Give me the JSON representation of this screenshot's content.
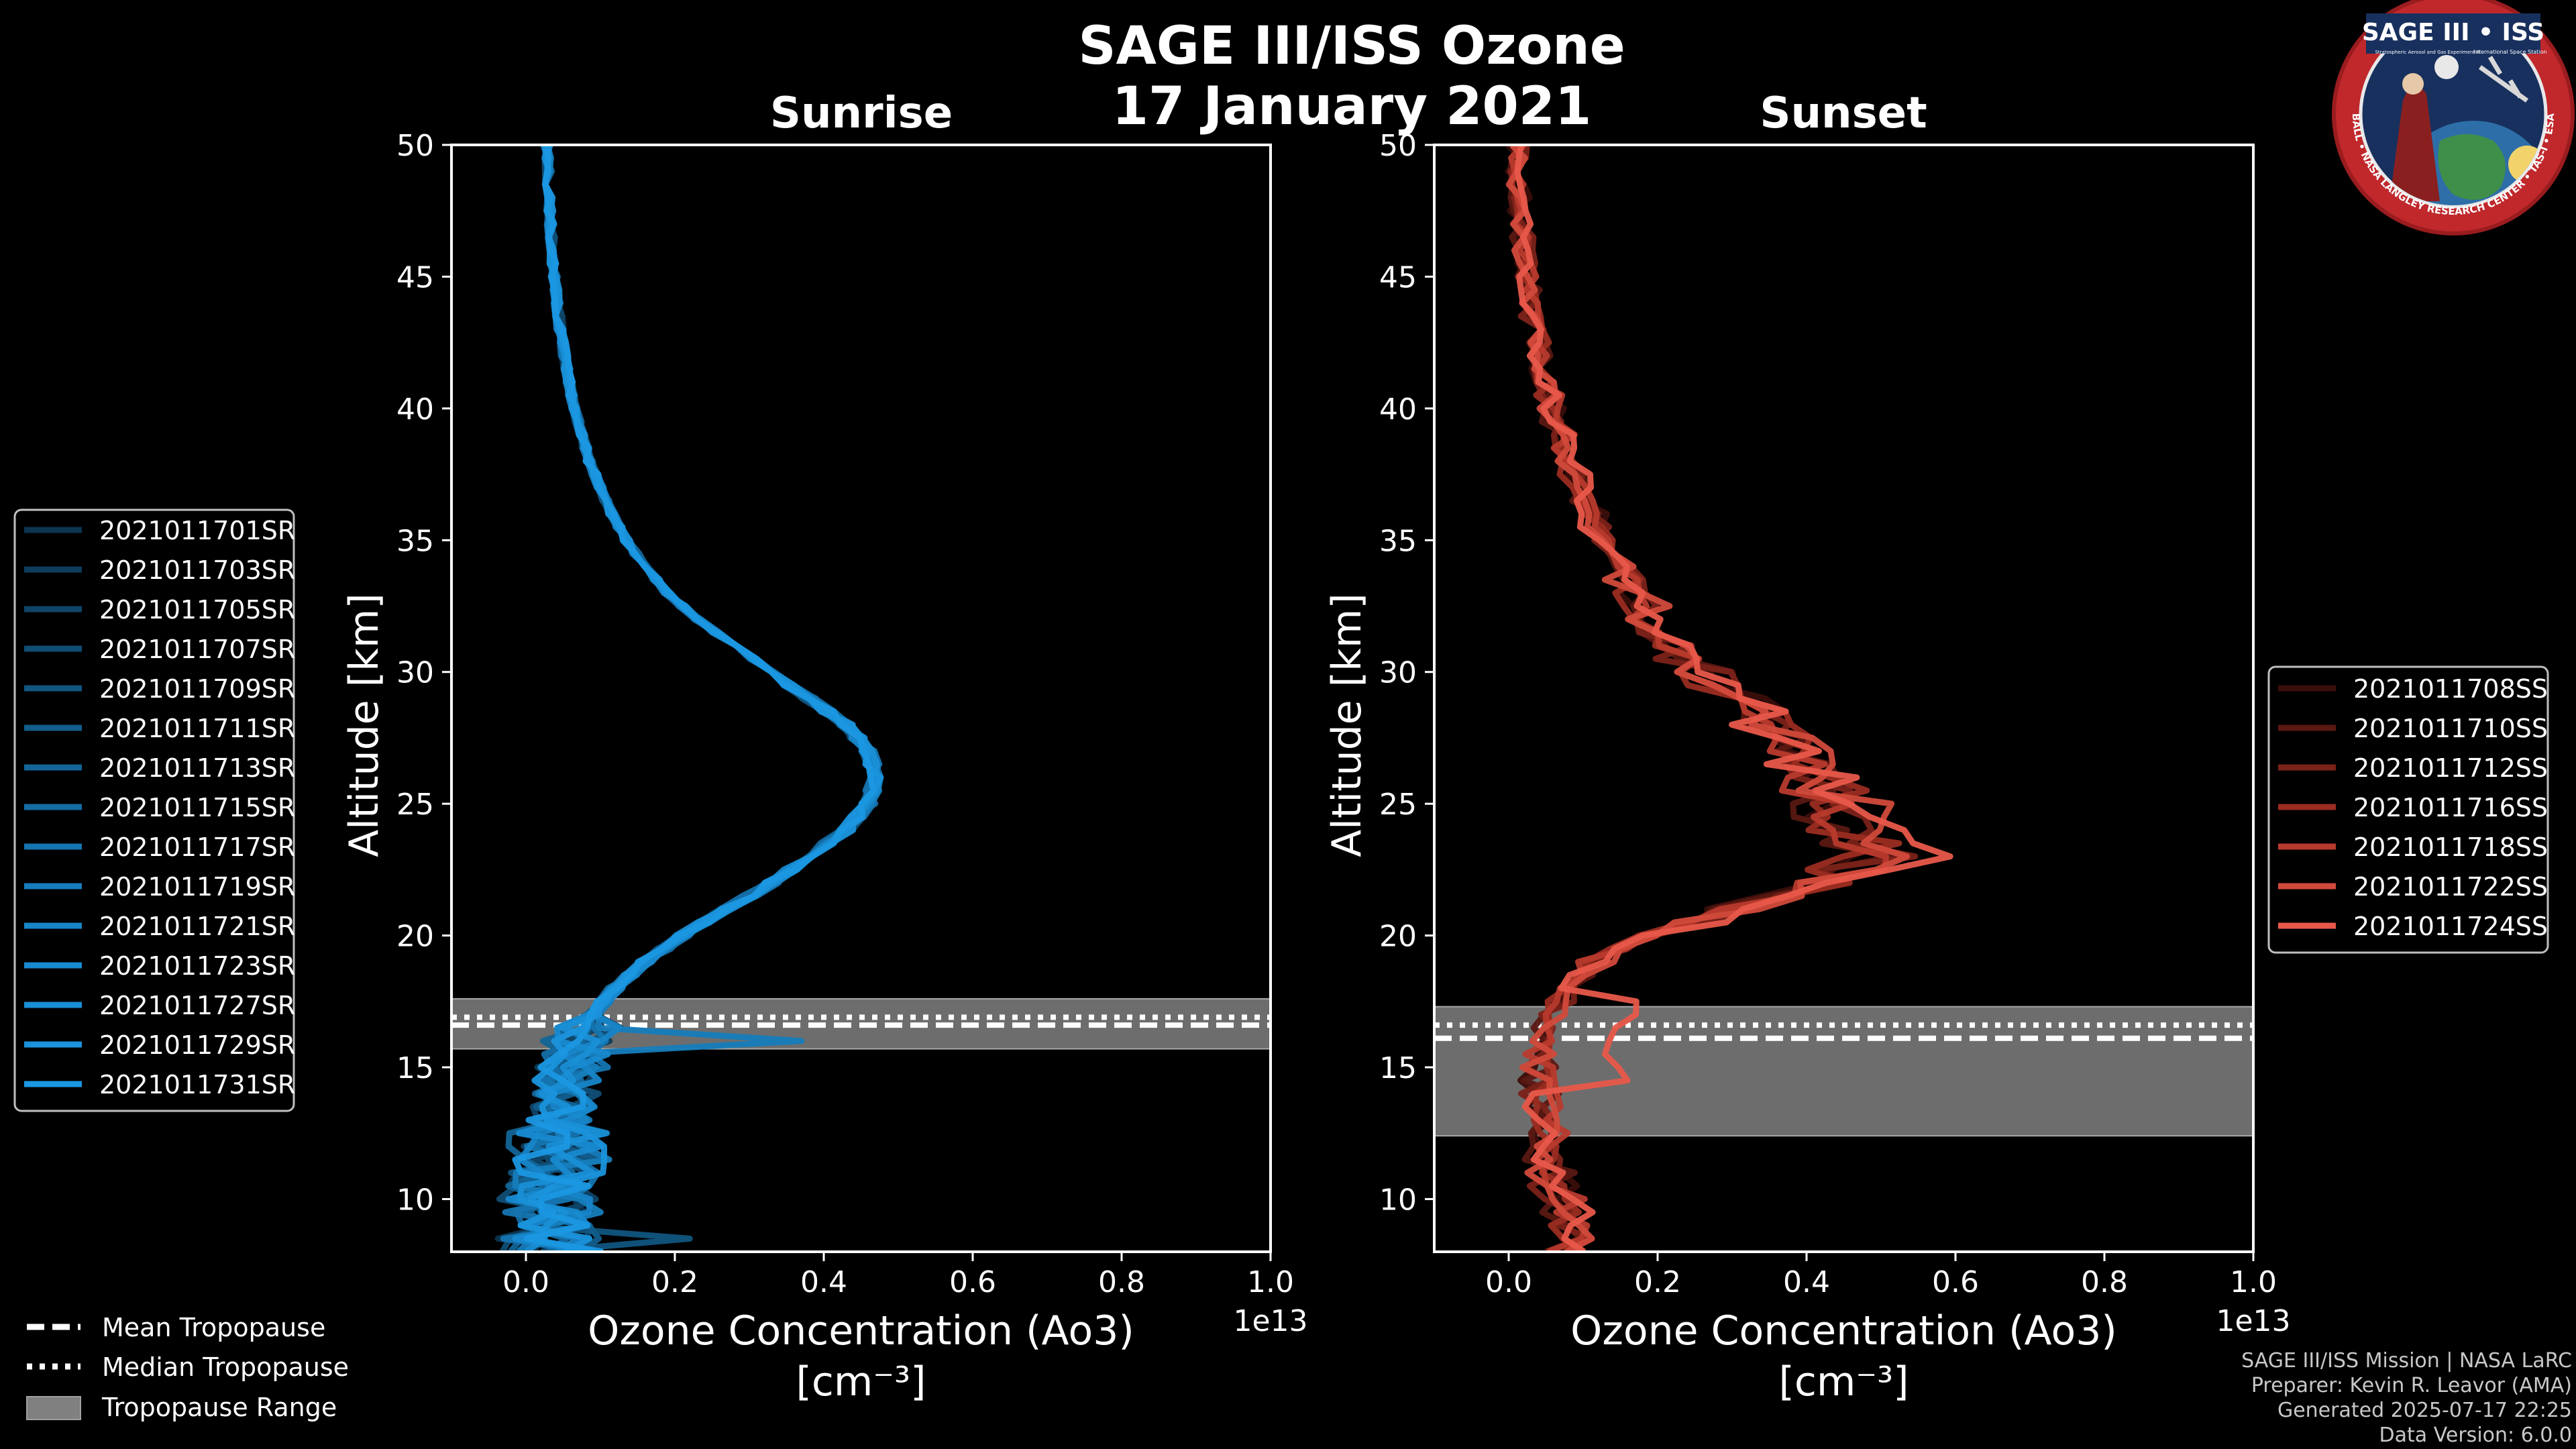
{
  "header": {
    "title_line1": "SAGE III/ISS Ozone",
    "title_line2": "17 January 2021"
  },
  "logo": {
    "title": "SAGE III • ISS",
    "subtitle_left": "Stratospheric Aerosol and Gas Experiment III",
    "subtitle_right": "International Space Station",
    "ring_text": "BALL • NASA LANGLEY RESEARCH CENTER • TAS-I • ESA"
  },
  "credits": {
    "line1": "SAGE III/ISS Mission | NASA LaRC",
    "line2": "Preparer: Kevin R. Leavor (AMA)",
    "line3": "Generated 2025-07-17 22:25",
    "line4": "Data Version: 6.0.0"
  },
  "tropopause_legend": {
    "mean": "Mean Tropopause",
    "median": "Median Tropopause",
    "range": "Tropopause Range"
  },
  "colors": {
    "sunrise": "#1a8fd4",
    "sunset": "#e8584a",
    "trop_fill": "#808080"
  },
  "chart_data": [
    {
      "type": "line",
      "title": "Sunrise",
      "xlabel": "Ozone Concentration (Ao3)",
      "xlabel_units": "[cm⁻³]",
      "ylabel": "Altitude [km]",
      "x_offset_label": "1e13",
      "xlim": [
        -0.1,
        1.0
      ],
      "ylim": [
        8,
        50
      ],
      "xticks": [
        "0.0",
        "0.2",
        "0.4",
        "0.6",
        "0.8",
        "1.0"
      ],
      "xtick_values": [
        0.0,
        0.2,
        0.4,
        0.6,
        0.8,
        1.0
      ],
      "yticks": [
        "10",
        "15",
        "20",
        "25",
        "30",
        "35",
        "40",
        "45",
        "50"
      ],
      "ytick_values": [
        10,
        15,
        20,
        25,
        30,
        35,
        40,
        45,
        50
      ],
      "tropopause": {
        "mean": 16.6,
        "median": 16.9,
        "range": [
          15.7,
          17.6
        ]
      },
      "base_profile": {
        "alt": [
          8,
          9,
          10,
          11,
          12,
          13,
          14,
          15,
          16,
          17,
          18,
          19,
          20,
          21,
          22,
          23,
          24,
          25,
          26,
          27,
          28,
          29,
          30,
          31,
          32,
          33,
          34,
          35,
          36,
          37,
          38,
          39,
          40,
          41,
          42,
          43,
          44,
          45,
          46,
          47,
          48,
          49,
          50
        ],
        "conc": [
          0.03,
          0.03,
          0.035,
          0.04,
          0.04,
          0.045,
          0.05,
          0.06,
          0.07,
          0.09,
          0.12,
          0.16,
          0.21,
          0.27,
          0.33,
          0.38,
          0.43,
          0.46,
          0.47,
          0.46,
          0.43,
          0.38,
          0.33,
          0.28,
          0.23,
          0.19,
          0.16,
          0.135,
          0.115,
          0.1,
          0.085,
          0.075,
          0.065,
          0.058,
          0.052,
          0.046,
          0.042,
          0.038,
          0.035,
          0.033,
          0.031,
          0.03,
          0.028
        ]
      },
      "series": [
        {
          "name": "2021011701SR",
          "color": "#0c3550"
        },
        {
          "name": "2021011703SR",
          "color": "#0d3d5c"
        },
        {
          "name": "2021011705SR",
          "color": "#0f4568"
        },
        {
          "name": "2021011707SR",
          "color": "#104d74"
        },
        {
          "name": "2021011709SR",
          "color": "#115580"
        },
        {
          "name": "2021011711SR",
          "color": "#125d8c"
        },
        {
          "name": "2021011713SR",
          "color": "#136598"
        },
        {
          "name": "2021011715SR",
          "color": "#146da4"
        },
        {
          "name": "2021011717SR",
          "color": "#1575b0"
        },
        {
          "name": "2021011719SR",
          "color": "#167dbc"
        },
        {
          "name": "2021011721SR",
          "color": "#1785c8"
        },
        {
          "name": "2021011723SR",
          "color": "#188ad0"
        },
        {
          "name": "2021011727SR",
          "color": "#198fd6"
        },
        {
          "name": "2021011729SR",
          "color": "#1a93dc"
        },
        {
          "name": "2021011731SR",
          "color": "#1b97e2"
        }
      ]
    },
    {
      "type": "line",
      "title": "Sunset",
      "xlabel": "Ozone Concentration (Ao3)",
      "xlabel_units": "[cm⁻³]",
      "ylabel": "Altitude [km]",
      "x_offset_label": "1e13",
      "xlim": [
        -0.1,
        1.0
      ],
      "ylim": [
        8,
        50
      ],
      "xticks": [
        "0.0",
        "0.2",
        "0.4",
        "0.6",
        "0.8",
        "1.0"
      ],
      "xtick_values": [
        0.0,
        0.2,
        0.4,
        0.6,
        0.8,
        1.0
      ],
      "yticks": [
        "10",
        "15",
        "20",
        "25",
        "30",
        "35",
        "40",
        "45",
        "50"
      ],
      "ytick_values": [
        10,
        15,
        20,
        25,
        30,
        35,
        40,
        45,
        50
      ],
      "tropopause": {
        "mean": 16.1,
        "median": 16.6,
        "range": [
          12.4,
          17.3
        ]
      },
      "base_profile": {
        "alt": [
          8,
          9,
          10,
          11,
          12,
          13,
          14,
          15,
          16,
          17,
          18,
          19,
          20,
          21,
          22,
          23,
          24,
          25,
          26,
          27,
          28,
          29,
          30,
          31,
          32,
          33,
          34,
          35,
          36,
          37,
          38,
          39,
          40,
          41,
          42,
          43,
          44,
          45,
          46,
          47,
          48,
          49,
          50
        ],
        "conc": [
          0.09,
          0.08,
          0.07,
          0.06,
          0.05,
          0.045,
          0.04,
          0.04,
          0.045,
          0.06,
          0.08,
          0.12,
          0.2,
          0.3,
          0.42,
          0.5,
          0.47,
          0.44,
          0.41,
          0.39,
          0.35,
          0.3,
          0.26,
          0.22,
          0.19,
          0.17,
          0.15,
          0.13,
          0.11,
          0.095,
          0.08,
          0.07,
          0.06,
          0.05,
          0.042,
          0.036,
          0.03,
          0.025,
          0.02,
          0.017,
          0.015,
          0.013,
          0.012
        ]
      },
      "series": [
        {
          "name": "2021011708SS",
          "color": "#3a0e0b"
        },
        {
          "name": "2021011710SS",
          "color": "#5a1812"
        },
        {
          "name": "2021011712SS",
          "color": "#7a2219"
        },
        {
          "name": "2021011716SS",
          "color": "#9a2c21"
        },
        {
          "name": "2021011718SS",
          "color": "#b83a2d"
        },
        {
          "name": "2021011722SS",
          "color": "#d14a3b"
        },
        {
          "name": "2021011724SS",
          "color": "#e8584a"
        }
      ]
    }
  ]
}
